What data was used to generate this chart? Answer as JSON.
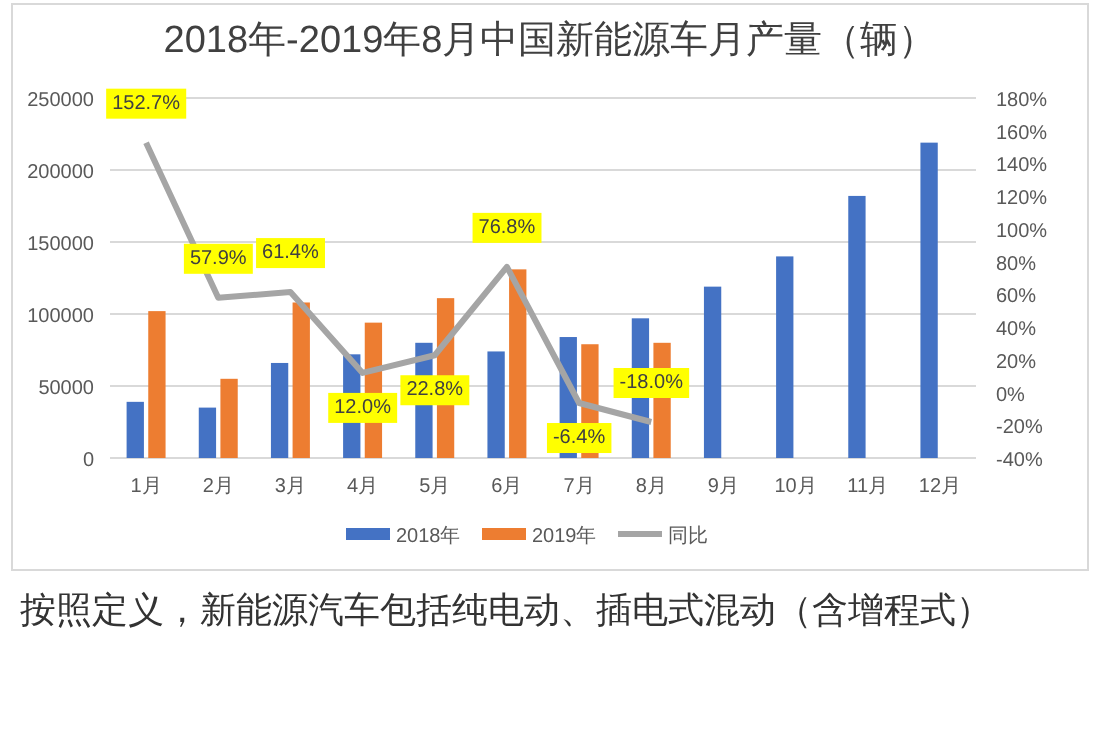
{
  "chart_data": {
    "type": "bar",
    "title": "2018年-2019年8月中国新能源车月产量（辆）",
    "categories": [
      "1月",
      "2月",
      "3月",
      "4月",
      "5月",
      "6月",
      "7月",
      "8月",
      "9月",
      "10月",
      "11月",
      "12月"
    ],
    "series": [
      {
        "name": "2018年",
        "color": "#4472c4",
        "values": [
          39000,
          35000,
          66000,
          72000,
          80000,
          74000,
          84000,
          97000,
          119000,
          140000,
          182000,
          219000
        ]
      },
      {
        "name": "2019年",
        "color": "#ed7d31",
        "values": [
          102000,
          55000,
          108000,
          94000,
          111000,
          131000,
          79000,
          80000,
          null,
          null,
          null,
          null
        ]
      },
      {
        "name": "同比",
        "type": "line",
        "axis": "y2",
        "color": "#a5a5a5",
        "marker": "none",
        "values": [
          152.7,
          57.9,
          61.4,
          12.0,
          22.8,
          76.8,
          -6.4,
          -18.0,
          null,
          null,
          null,
          null
        ],
        "value_labels": [
          "152.7%",
          "57.9%",
          "61.4%",
          "12.0%",
          "22.8%",
          "76.8%",
          "-6.4%",
          "-18.0%",
          null,
          null,
          null,
          null
        ]
      }
    ],
    "ylim": [
      0,
      250000
    ],
    "yticks": [
      0,
      50000,
      100000,
      150000,
      200000,
      250000
    ],
    "y2lim": [
      -40,
      180
    ],
    "y2ticks": [
      {
        "value": -40,
        "label": "-40%"
      },
      {
        "value": -20,
        "label": "-20%"
      },
      {
        "value": 0,
        "label": "0%"
      },
      {
        "value": 20,
        "label": "20%"
      },
      {
        "value": 40,
        "label": "40%"
      },
      {
        "value": 60,
        "label": "60%"
      },
      {
        "value": 80,
        "label": "80%"
      },
      {
        "value": 100,
        "label": "100%"
      },
      {
        "value": 120,
        "label": "120%"
      },
      {
        "value": 140,
        "label": "140%"
      },
      {
        "value": 160,
        "label": "160%"
      },
      {
        "value": 180,
        "label": "180%"
      }
    ],
    "grid": "y",
    "legend": "bottom",
    "annotations": [
      "按照定义，新能源汽车包括纯电动、插电式混动（含增程式）"
    ]
  }
}
